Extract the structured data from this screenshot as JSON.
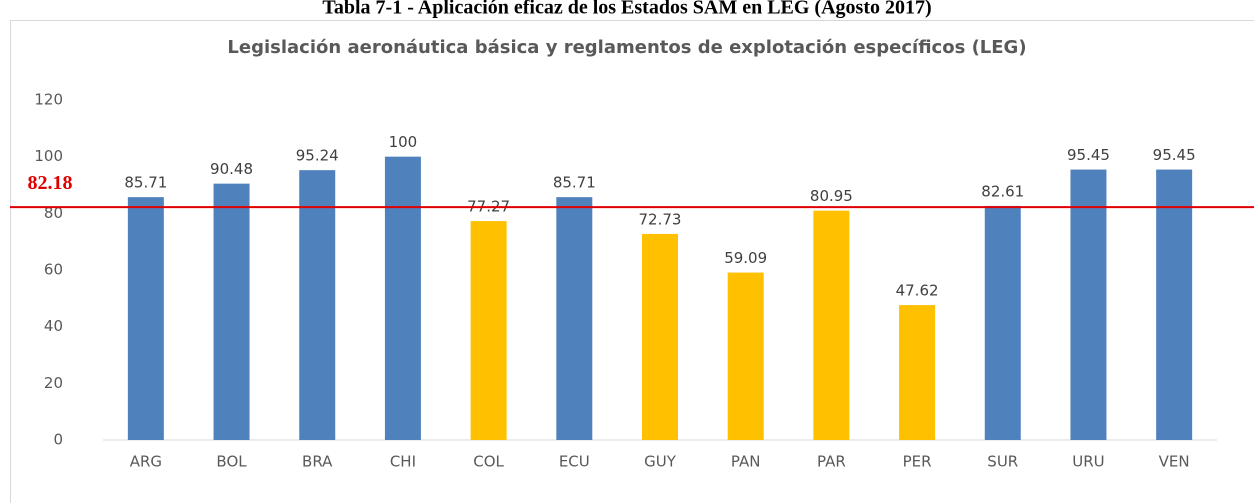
{
  "heading": "Tabla 7-1 - Aplicación eficaz de los Estados SAM en LEG (Agosto 2017)",
  "chart_data": {
    "type": "bar",
    "title": "Legislación aeronáutica básica y reglamentos de explotación específicos (LEG)",
    "categories": [
      "ARG",
      "BOL",
      "BRA",
      "CHI",
      "COL",
      "ECU",
      "GUY",
      "PAN",
      "PAR",
      "PER",
      "SUR",
      "URU",
      "VEN"
    ],
    "values": [
      85.71,
      90.48,
      95.24,
      100,
      77.27,
      85.71,
      72.73,
      59.09,
      80.95,
      47.62,
      82.61,
      95.45,
      95.45
    ],
    "colors": [
      "#4f81bd",
      "#4f81bd",
      "#4f81bd",
      "#4f81bd",
      "#ffc000",
      "#4f81bd",
      "#ffc000",
      "#ffc000",
      "#ffc000",
      "#ffc000",
      "#4f81bd",
      "#4f81bd",
      "#4f81bd"
    ],
    "ylim": [
      0,
      120
    ],
    "yticks": [
      0,
      20,
      40,
      60,
      80,
      100,
      120
    ],
    "grid": false,
    "reference_line": {
      "value": 82.18,
      "color": "#e00000"
    }
  }
}
